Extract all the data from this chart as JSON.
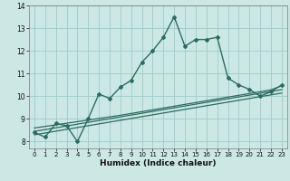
{
  "xlabel": "Humidex (Indice chaleur)",
  "bg_color": "#cce8e4",
  "grid_color": "#99cccc",
  "line_color": "#2d6b62",
  "x_main": [
    0,
    1,
    2,
    3,
    4,
    5,
    6,
    7,
    8,
    9,
    10,
    11,
    12,
    13,
    14,
    15,
    16,
    17,
    18,
    19,
    20,
    21,
    22,
    23
  ],
  "y_main": [
    8.4,
    8.2,
    8.8,
    8.7,
    8.0,
    9.0,
    10.1,
    9.9,
    10.4,
    10.7,
    11.5,
    12.0,
    12.6,
    13.5,
    12.2,
    12.5,
    12.5,
    12.6,
    10.8,
    10.5,
    10.3,
    10.0,
    10.2,
    10.5
  ],
  "y_line1": [
    8.3,
    8.38,
    8.46,
    8.54,
    8.62,
    8.7,
    8.78,
    8.86,
    8.94,
    9.02,
    9.1,
    9.18,
    9.26,
    9.34,
    9.42,
    9.5,
    9.58,
    9.66,
    9.74,
    9.82,
    9.9,
    9.98,
    10.06,
    10.14
  ],
  "y_line2": [
    8.45,
    8.53,
    8.61,
    8.69,
    8.77,
    8.85,
    8.93,
    9.01,
    9.09,
    9.17,
    9.25,
    9.33,
    9.41,
    9.49,
    9.57,
    9.65,
    9.73,
    9.81,
    9.89,
    9.97,
    10.05,
    10.13,
    10.21,
    10.29
  ],
  "y_line3": [
    8.6,
    8.67,
    8.74,
    8.81,
    8.88,
    8.95,
    9.02,
    9.09,
    9.16,
    9.24,
    9.32,
    9.4,
    9.48,
    9.56,
    9.64,
    9.72,
    9.8,
    9.88,
    9.96,
    10.04,
    10.12,
    10.2,
    10.28,
    10.46
  ],
  "ylim": [
    7.7,
    14.0
  ],
  "xlim": [
    -0.5,
    23.5
  ],
  "yticks": [
    8,
    9,
    10,
    11,
    12,
    13,
    14
  ],
  "xticks": [
    0,
    1,
    2,
    3,
    4,
    5,
    6,
    7,
    8,
    9,
    10,
    11,
    12,
    13,
    14,
    15,
    16,
    17,
    18,
    19,
    20,
    21,
    22,
    23
  ]
}
